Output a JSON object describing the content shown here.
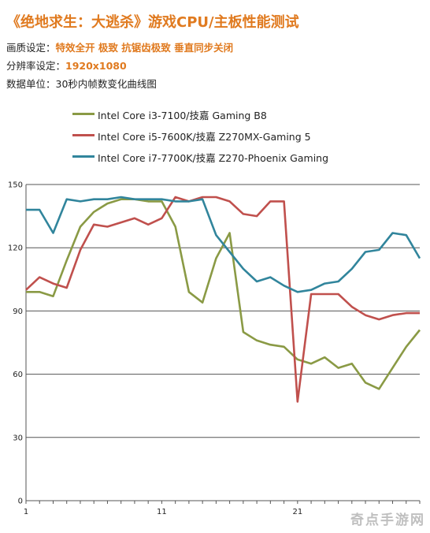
{
  "header": {
    "title": "《绝地求生：大逃杀》游戏CPU/主板性能测试",
    "quality_label": "画质设定：",
    "quality_value": "特效全开  极致  抗锯齿极致  垂直同步关闭",
    "resolution_label": "分辨率设定：",
    "resolution_value": "1920x1080",
    "unit_text": "数据单位：30秒内帧数变化曲线图"
  },
  "watermark": "奇点手游网",
  "chart_data": {
    "type": "line",
    "x": [
      1,
      2,
      3,
      4,
      5,
      6,
      7,
      8,
      9,
      10,
      11,
      12,
      13,
      14,
      15,
      16,
      17,
      18,
      19,
      20,
      21,
      22,
      23,
      24,
      25,
      26,
      27,
      28,
      29,
      30
    ],
    "xticks": [
      "1",
      "11",
      "21"
    ],
    "yticks": [
      "0",
      "30",
      "60",
      "90",
      "120",
      "150"
    ],
    "ylim": [
      0,
      150
    ],
    "xlim": [
      1,
      30
    ],
    "grid": "horizontal",
    "legend_position": "top",
    "series": [
      {
        "name": "Intel Core i3-7100/技嘉 Gaming B8",
        "color": "#8a9a45",
        "values": [
          99,
          99,
          97,
          114,
          130,
          137,
          141,
          143,
          143,
          142,
          142,
          130,
          99,
          94,
          115,
          127,
          80,
          76,
          74,
          73,
          67,
          65,
          68,
          63,
          65,
          56,
          53,
          63,
          73,
          81
        ]
      },
      {
        "name": "Intel Core i5-7600K/技嘉 Z270MX-Gaming 5",
        "color": "#c0504d",
        "values": [
          100,
          106,
          103,
          101,
          119,
          131,
          130,
          132,
          134,
          131,
          134,
          144,
          142,
          144,
          144,
          142,
          136,
          135,
          142,
          142,
          47,
          98,
          98,
          98,
          92,
          88,
          86,
          88,
          89,
          89
        ]
      },
      {
        "name": "Intel Core i7-7700K/技嘉 Z270-Phoenix Gaming",
        "color": "#31859c",
        "values": [
          138,
          138,
          127,
          143,
          142,
          143,
          143,
          144,
          143,
          143,
          143,
          142,
          142,
          143,
          126,
          118,
          110,
          104,
          106,
          102,
          99,
          100,
          103,
          104,
          110,
          118,
          119,
          127,
          126,
          115
        ]
      }
    ]
  }
}
